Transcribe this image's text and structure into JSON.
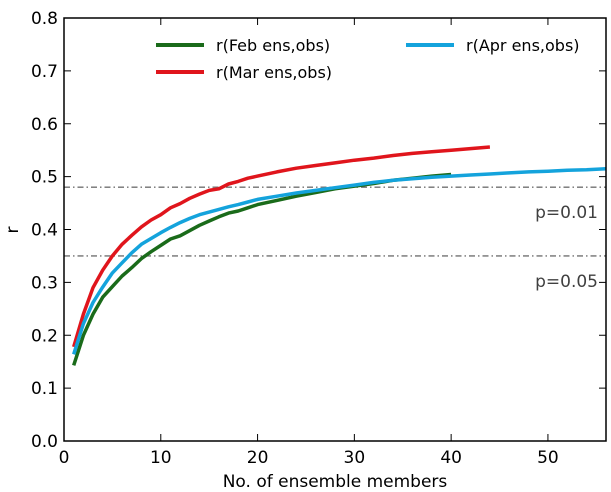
{
  "chart_data": {
    "type": "line",
    "xlabel": "No. of ensemble members",
    "ylabel": "r",
    "xlim": [
      0,
      56
    ],
    "ylim": [
      0,
      0.8
    ],
    "xticks": [
      0,
      10,
      20,
      30,
      40,
      50
    ],
    "yticks": [
      0.0,
      0.1,
      0.2,
      0.3,
      0.4,
      0.5,
      0.6,
      0.7,
      0.8
    ],
    "xtick_labels": [
      "0",
      "10",
      "20",
      "30",
      "40",
      "50"
    ],
    "ytick_labels": [
      "0.0",
      "0.1",
      "0.2",
      "0.3",
      "0.4",
      "0.5",
      "0.6",
      "0.7",
      "0.8"
    ],
    "grid": false,
    "legend": "top-right",
    "series": [
      {
        "name": "r(Feb ens,obs)",
        "color": "#1a6b1a",
        "x": [
          1,
          2,
          3,
          4,
          5,
          6,
          7,
          8,
          9,
          10,
          11,
          12,
          13,
          14,
          15,
          16,
          17,
          18,
          19,
          20,
          22,
          24,
          26,
          28,
          30,
          32,
          34,
          36,
          38,
          40
        ],
        "y": [
          0.143,
          0.2,
          0.24,
          0.272,
          0.292,
          0.312,
          0.328,
          0.345,
          0.358,
          0.37,
          0.382,
          0.388,
          0.398,
          0.408,
          0.416,
          0.424,
          0.431,
          0.435,
          0.441,
          0.447,
          0.455,
          0.463,
          0.47,
          0.477,
          0.482,
          0.487,
          0.493,
          0.497,
          0.501,
          0.504
        ]
      },
      {
        "name": "r(Mar ens,obs)",
        "color": "#e0151c",
        "x": [
          1,
          2,
          3,
          4,
          5,
          6,
          7,
          8,
          9,
          10,
          11,
          12,
          13,
          14,
          15,
          16,
          17,
          18,
          19,
          20,
          22,
          24,
          26,
          28,
          30,
          32,
          34,
          36,
          38,
          40,
          42,
          44
        ],
        "y": [
          0.178,
          0.24,
          0.29,
          0.323,
          0.35,
          0.372,
          0.389,
          0.405,
          0.418,
          0.428,
          0.441,
          0.449,
          0.459,
          0.467,
          0.474,
          0.477,
          0.486,
          0.491,
          0.497,
          0.501,
          0.509,
          0.516,
          0.521,
          0.526,
          0.531,
          0.535,
          0.54,
          0.544,
          0.547,
          0.55,
          0.553,
          0.556
        ]
      },
      {
        "name": "r(Apr ens,obs)",
        "color": "#14a3dc",
        "x": [
          1,
          2,
          3,
          4,
          5,
          6,
          7,
          8,
          9,
          10,
          11,
          12,
          13,
          14,
          15,
          16,
          17,
          18,
          19,
          20,
          22,
          24,
          26,
          28,
          30,
          32,
          34,
          36,
          38,
          40,
          42,
          44,
          46,
          48,
          50,
          52,
          54,
          56
        ],
        "y": [
          0.164,
          0.222,
          0.262,
          0.291,
          0.318,
          0.337,
          0.356,
          0.372,
          0.383,
          0.394,
          0.404,
          0.413,
          0.421,
          0.428,
          0.433,
          0.438,
          0.443,
          0.447,
          0.452,
          0.457,
          0.463,
          0.469,
          0.474,
          0.479,
          0.484,
          0.489,
          0.493,
          0.496,
          0.499,
          0.501,
          0.503,
          0.505,
          0.507,
          0.509,
          0.51,
          0.512,
          0.513,
          0.515
        ]
      }
    ],
    "reference_lines": [
      {
        "y": 0.48,
        "label": "p=0.01",
        "color": "#707070"
      },
      {
        "y": 0.35,
        "label": "p=0.05",
        "color": "#707070"
      }
    ]
  }
}
